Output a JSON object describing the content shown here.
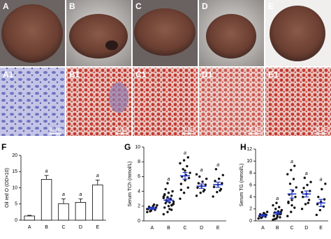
{
  "photo_labels": [
    "A",
    "B",
    "C",
    "D",
    "E"
  ],
  "histology_labels": [
    "A1",
    "B1",
    "C1",
    "D1",
    "E1"
  ],
  "scale_bar": "20 μm",
  "chart_data": [
    {
      "type": "bar",
      "panel_label": "F",
      "ylabel": "Oil red O (OD×10)",
      "categories": [
        "A",
        "B",
        "C",
        "D",
        "E"
      ],
      "values": [
        1.3,
        12.6,
        5.1,
        5.5,
        10.9
      ],
      "errors": [
        0.2,
        1.2,
        1.5,
        1.1,
        1.5
      ],
      "annotations": [
        null,
        "a",
        "a",
        "a",
        "a"
      ],
      "color": "#ffffff",
      "ylim": [
        0,
        20
      ],
      "yticks": [
        0,
        5,
        10,
        15,
        20
      ]
    },
    {
      "type": "dot",
      "panel_label": "G",
      "ylabel": "Serum TCh (mmol/L)",
      "categories": [
        "A",
        "B",
        "C",
        "D",
        "E"
      ],
      "values": [
        1.7,
        2.8,
        6.1,
        4.7,
        4.9
      ],
      "errors": [
        0.15,
        0.25,
        0.45,
        0.3,
        0.35
      ],
      "points": [
        [
          1.2,
          1.4,
          1.5,
          1.6,
          1.7,
          1.8,
          1.9,
          2.0,
          2.1,
          1.3,
          2.2,
          1.6
        ],
        [
          0.9,
          1.2,
          1.5,
          1.8,
          2.0,
          2.2,
          2.4,
          2.5,
          2.6,
          2.8,
          3.0,
          3.1,
          3.2,
          3.4,
          3.6,
          3.8,
          4.0,
          4.3,
          1.6,
          2.3,
          2.7,
          2.9,
          3.3,
          5.1,
          2.1,
          3.5
        ],
        [
          3.0,
          3.8,
          4.5,
          5.0,
          5.5,
          5.8,
          6.0,
          6.2,
          6.5,
          7.0,
          7.4,
          7.8,
          8.2,
          8.6,
          4.2,
          6.8
        ],
        [
          3.4,
          3.8,
          4.2,
          4.5,
          4.7,
          4.9,
          5.1,
          5.3,
          5.7,
          6.0,
          4.0,
          6.3
        ],
        [
          3.3,
          3.9,
          4.3,
          4.6,
          4.9,
          5.1,
          5.4,
          5.7,
          6.2,
          7.0,
          4.1
        ]
      ],
      "annotations": [
        null,
        "a",
        "a",
        "a",
        "a"
      ],
      "color": "#2234c8",
      "ylim": [
        0,
        10
      ],
      "yticks": [
        0,
        2,
        4,
        6,
        8,
        10
      ]
    },
    {
      "type": "dot",
      "panel_label": "H",
      "ylabel": "Serum TG (mmol/L)",
      "categories": [
        "A",
        "B",
        "C",
        "D",
        "E"
      ],
      "values": [
        0.9,
        1.3,
        4.5,
        4.5,
        3.0
      ],
      "errors": [
        0.2,
        0.2,
        0.7,
        0.5,
        0.6
      ],
      "points": [
        [
          0.4,
          0.6,
          0.7,
          0.8,
          0.9,
          1.0,
          1.1,
          1.3,
          1.5,
          0.5,
          1.2
        ],
        [
          0.2,
          0.4,
          0.6,
          0.8,
          1.0,
          1.2,
          1.4,
          1.6,
          1.8,
          2.0,
          2.3,
          2.6,
          3.0,
          1.1,
          0.9,
          0.7,
          1.5,
          0.3,
          1.3
        ],
        [
          0.8,
          1.5,
          2.2,
          3.0,
          3.5,
          4.0,
          4.4,
          5.0,
          5.6,
          6.2,
          7.0,
          7.8,
          8.5,
          9.2,
          3.2,
          2.6
        ],
        [
          2.0,
          2.8,
          3.5,
          4.0,
          4.5,
          5.0,
          5.5,
          6.0,
          6.5,
          7.2,
          3.0,
          4.8
        ],
        [
          1.0,
          1.8,
          2.4,
          2.8,
          3.2,
          3.6,
          4.0,
          5.3,
          6.2
        ]
      ],
      "annotations": [
        null,
        "a",
        "a",
        "a",
        "a"
      ],
      "color": "#2234c8",
      "ylim": [
        0,
        12
      ],
      "yticks": [
        0,
        2,
        4,
        6,
        8,
        10,
        12
      ]
    }
  ]
}
